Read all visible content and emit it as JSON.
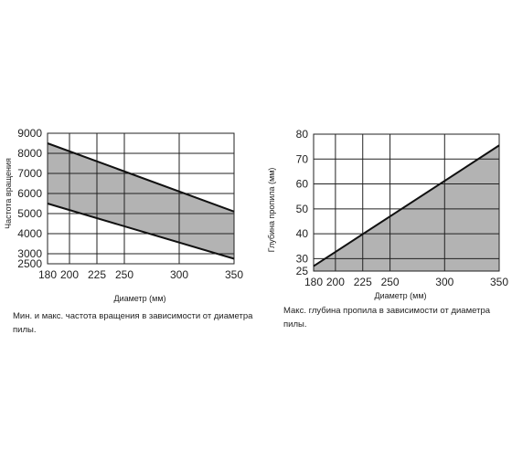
{
  "chart_data": [
    {
      "type": "area",
      "xlabel": "Диаметр (мм)",
      "ylabel": "Частота вращения",
      "x_ticks": [
        "180",
        "200",
        "225",
        "250",
        "300",
        "350"
      ],
      "y_ticks": [
        "2500",
        "3000",
        "4000",
        "5000",
        "6000",
        "7000",
        "8000",
        "9000"
      ],
      "xlim": [
        180,
        350
      ],
      "ylim": [
        2500,
        9000
      ],
      "grid": true,
      "series": [
        {
          "role": "max",
          "x": [
            180,
            350
          ],
          "y": [
            8500,
            5100
          ]
        },
        {
          "role": "min",
          "x": [
            180,
            350
          ],
          "y": [
            5500,
            2750
          ]
        }
      ],
      "fill_color": "#b3b3b3",
      "caption": "Мин. и макс. частота вращения в зависимости от диаметра пилы."
    },
    {
      "type": "area",
      "xlabel": "Диаметр (мм)",
      "ylabel": "Глубина пропила (мм)",
      "x_ticks": [
        "180",
        "200",
        "225",
        "250",
        "300",
        "350"
      ],
      "y_ticks": [
        "25",
        "30",
        "40",
        "50",
        "60",
        "70",
        "80"
      ],
      "xlim": [
        180,
        350
      ],
      "ylim": [
        25,
        80
      ],
      "grid": true,
      "series": [
        {
          "role": "max",
          "x": [
            180,
            350
          ],
          "y": [
            27,
            75.5
          ]
        }
      ],
      "fill_color": "#b3b3b3",
      "caption": "Макс. глубина пропила в зависимости от диаметра пилы."
    }
  ]
}
